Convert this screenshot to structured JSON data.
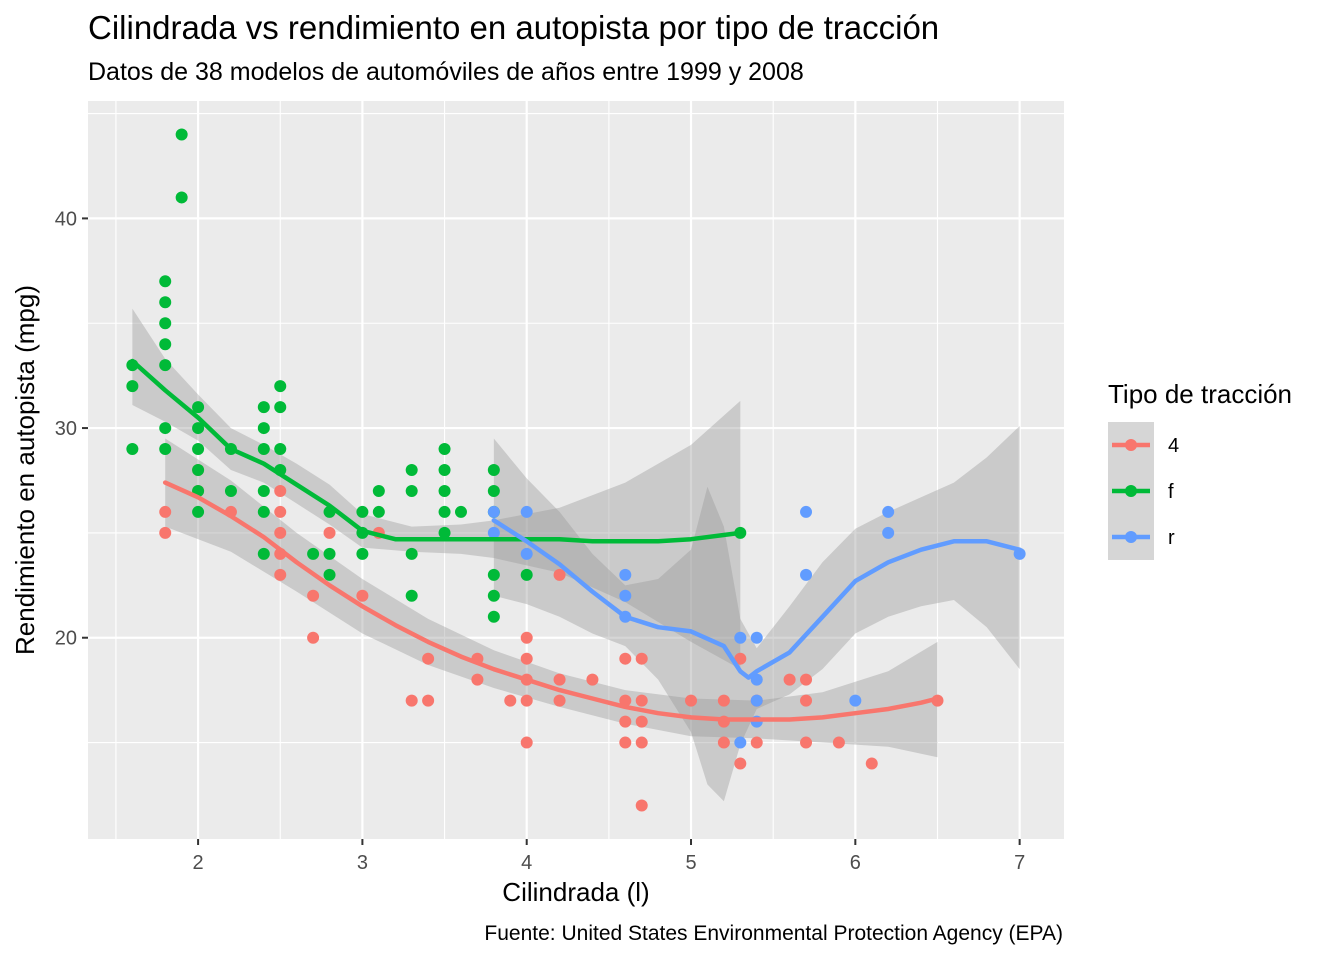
{
  "chart_data": {
    "type": "scatter",
    "title": "Cilindrada vs rendimiento en autopista por tipo de tracción",
    "subtitle": "Datos de 38 modelos de automóviles de años entre 1999 y 2008",
    "xlabel": "Cilindrada (l)",
    "ylabel": "Rendimiento en autopista (mpg)",
    "caption": "Fuente: United States Environmental Protection Agency (EPA)",
    "xlim": [
      1.33,
      7.27
    ],
    "ylim": [
      10.4,
      45.6
    ],
    "x_ticks": [
      2,
      3,
      4,
      5,
      6,
      7
    ],
    "x_tick_labels": [
      "2",
      "3",
      "4",
      "5",
      "6",
      "7"
    ],
    "y_ticks": [
      20,
      30,
      40
    ],
    "y_tick_labels": [
      "20",
      "30",
      "40"
    ],
    "grid": true,
    "legend": {
      "title": "Tipo de tracción",
      "placement": "right",
      "entries": [
        "4",
        "f",
        "r"
      ]
    },
    "series": [
      {
        "name": "4",
        "color": "#F8766D",
        "points": [
          [
            1.8,
            26
          ],
          [
            1.8,
            25
          ],
          [
            2.0,
            28
          ],
          [
            2.0,
            27
          ],
          [
            2.2,
            26
          ],
          [
            2.5,
            27
          ],
          [
            2.5,
            26
          ],
          [
            2.5,
            25
          ],
          [
            2.5,
            24
          ],
          [
            2.5,
            23
          ],
          [
            2.7,
            22
          ],
          [
            2.7,
            20
          ],
          [
            2.8,
            25
          ],
          [
            3.0,
            22
          ],
          [
            3.1,
            25
          ],
          [
            3.3,
            17
          ],
          [
            3.4,
            19
          ],
          [
            3.4,
            17
          ],
          [
            3.7,
            19
          ],
          [
            3.7,
            18
          ],
          [
            3.9,
            17
          ],
          [
            4.0,
            20
          ],
          [
            4.0,
            19
          ],
          [
            4.0,
            18
          ],
          [
            4.0,
            17
          ],
          [
            4.0,
            15
          ],
          [
            4.2,
            23
          ],
          [
            4.2,
            18
          ],
          [
            4.2,
            17
          ],
          [
            4.4,
            18
          ],
          [
            4.6,
            19
          ],
          [
            4.6,
            17
          ],
          [
            4.6,
            16
          ],
          [
            4.6,
            15
          ],
          [
            4.7,
            19
          ],
          [
            4.7,
            17
          ],
          [
            4.7,
            16
          ],
          [
            4.7,
            15
          ],
          [
            4.7,
            12
          ],
          [
            5.0,
            17
          ],
          [
            5.2,
            17
          ],
          [
            5.2,
            16
          ],
          [
            5.2,
            15
          ],
          [
            5.3,
            19
          ],
          [
            5.3,
            14
          ],
          [
            5.4,
            17
          ],
          [
            5.4,
            15
          ],
          [
            5.6,
            18
          ],
          [
            5.7,
            18
          ],
          [
            5.7,
            17
          ],
          [
            5.7,
            15
          ],
          [
            5.9,
            15
          ],
          [
            6.1,
            14
          ],
          [
            6.5,
            17
          ]
        ],
        "smooth": [
          [
            1.8,
            27.4
          ],
          [
            2.0,
            26.7
          ],
          [
            2.2,
            25.8
          ],
          [
            2.4,
            24.8
          ],
          [
            2.6,
            23.6
          ],
          [
            2.8,
            22.5
          ],
          [
            3.0,
            21.5
          ],
          [
            3.2,
            20.6
          ],
          [
            3.4,
            19.8
          ],
          [
            3.6,
            19.1
          ],
          [
            3.8,
            18.5
          ],
          [
            4.0,
            18.0
          ],
          [
            4.2,
            17.5
          ],
          [
            4.4,
            17.1
          ],
          [
            4.6,
            16.7
          ],
          [
            4.8,
            16.4
          ],
          [
            5.0,
            16.2
          ],
          [
            5.2,
            16.1
          ],
          [
            5.4,
            16.1
          ],
          [
            5.6,
            16.1
          ],
          [
            5.8,
            16.2
          ],
          [
            6.0,
            16.4
          ],
          [
            6.2,
            16.6
          ],
          [
            6.4,
            16.9
          ],
          [
            6.5,
            17.1
          ]
        ],
        "band": [
          [
            1.8,
            29.5,
            25.3
          ],
          [
            2.2,
            27.5,
            24.1
          ],
          [
            2.6,
            25.0,
            22.2
          ],
          [
            3.0,
            22.8,
            20.2
          ],
          [
            3.4,
            20.9,
            18.7
          ],
          [
            3.8,
            19.4,
            17.6
          ],
          [
            4.2,
            18.3,
            16.7
          ],
          [
            4.6,
            17.5,
            15.9
          ],
          [
            5.0,
            17.1,
            15.3
          ],
          [
            5.4,
            17.0,
            15.2
          ],
          [
            5.8,
            17.4,
            15.0
          ],
          [
            6.2,
            18.4,
            14.8
          ],
          [
            6.5,
            19.8,
            14.3
          ]
        ]
      },
      {
        "name": "f",
        "color": "#00BA38",
        "points": [
          [
            1.6,
            33
          ],
          [
            1.6,
            32
          ],
          [
            1.6,
            29
          ],
          [
            1.8,
            37
          ],
          [
            1.8,
            36
          ],
          [
            1.8,
            35
          ],
          [
            1.8,
            34
          ],
          [
            1.8,
            33
          ],
          [
            1.8,
            30
          ],
          [
            1.8,
            29
          ],
          [
            1.9,
            44
          ],
          [
            1.9,
            41
          ],
          [
            2.0,
            31
          ],
          [
            2.0,
            30
          ],
          [
            2.0,
            29
          ],
          [
            2.0,
            28
          ],
          [
            2.0,
            27
          ],
          [
            2.0,
            26
          ],
          [
            2.2,
            29
          ],
          [
            2.2,
            27
          ],
          [
            2.4,
            31
          ],
          [
            2.4,
            30
          ],
          [
            2.4,
            29
          ],
          [
            2.4,
            27
          ],
          [
            2.4,
            26
          ],
          [
            2.4,
            24
          ],
          [
            2.5,
            32
          ],
          [
            2.5,
            31
          ],
          [
            2.5,
            29
          ],
          [
            2.5,
            28
          ],
          [
            2.7,
            24
          ],
          [
            2.8,
            26
          ],
          [
            2.8,
            24
          ],
          [
            2.8,
            23
          ],
          [
            3.0,
            26
          ],
          [
            3.0,
            25
          ],
          [
            3.0,
            24
          ],
          [
            3.1,
            27
          ],
          [
            3.1,
            26
          ],
          [
            3.3,
            28
          ],
          [
            3.3,
            27
          ],
          [
            3.3,
            24
          ],
          [
            3.3,
            22
          ],
          [
            3.5,
            29
          ],
          [
            3.5,
            28
          ],
          [
            3.5,
            27
          ],
          [
            3.5,
            26
          ],
          [
            3.5,
            25
          ],
          [
            3.6,
            26
          ],
          [
            3.8,
            28
          ],
          [
            3.8,
            27
          ],
          [
            3.8,
            26
          ],
          [
            3.8,
            23
          ],
          [
            3.8,
            22
          ],
          [
            3.8,
            21
          ],
          [
            4.0,
            23
          ],
          [
            5.3,
            25
          ]
        ],
        "smooth": [
          [
            1.6,
            33.2
          ],
          [
            1.8,
            31.8
          ],
          [
            2.0,
            30.5
          ],
          [
            2.2,
            29.0
          ],
          [
            2.4,
            28.3
          ],
          [
            2.6,
            27.3
          ],
          [
            2.8,
            26.3
          ],
          [
            3.0,
            25.1
          ],
          [
            3.2,
            24.7
          ],
          [
            3.4,
            24.7
          ],
          [
            3.6,
            24.7
          ],
          [
            3.8,
            24.7
          ],
          [
            4.0,
            24.7
          ],
          [
            4.2,
            24.7
          ],
          [
            4.4,
            24.6
          ],
          [
            4.6,
            24.6
          ],
          [
            4.8,
            24.6
          ],
          [
            5.0,
            24.7
          ],
          [
            5.3,
            25.0
          ]
        ],
        "band": [
          [
            1.6,
            35.7,
            31.1
          ],
          [
            1.8,
            33.3,
            30.3
          ],
          [
            2.0,
            31.6,
            29.4
          ],
          [
            2.2,
            30.0,
            28.0
          ],
          [
            2.4,
            29.2,
            27.4
          ],
          [
            2.6,
            28.3,
            26.4
          ],
          [
            2.8,
            27.3,
            25.4
          ],
          [
            3.0,
            25.9,
            24.3
          ],
          [
            3.3,
            25.3,
            24.1
          ],
          [
            3.6,
            25.4,
            24.0
          ],
          [
            3.8,
            25.6,
            23.8
          ],
          [
            4.2,
            26.2,
            23.1
          ],
          [
            4.6,
            27.4,
            21.7
          ],
          [
            5.0,
            29.2,
            19.8
          ],
          [
            5.3,
            31.3,
            18.5
          ]
        ]
      },
      {
        "name": "r",
        "color": "#619CFF",
        "points": [
          [
            3.8,
            26
          ],
          [
            3.8,
            25
          ],
          [
            4.0,
            26
          ],
          [
            4.0,
            24
          ],
          [
            4.6,
            23
          ],
          [
            4.6,
            22
          ],
          [
            4.6,
            21
          ],
          [
            5.3,
            20
          ],
          [
            5.3,
            15
          ],
          [
            5.4,
            20
          ],
          [
            5.4,
            18
          ],
          [
            5.4,
            17
          ],
          [
            5.4,
            16
          ],
          [
            5.7,
            26
          ],
          [
            5.7,
            23
          ],
          [
            6.0,
            17
          ],
          [
            6.2,
            26
          ],
          [
            6.2,
            25
          ],
          [
            7.0,
            24
          ]
        ],
        "smooth": [
          [
            3.8,
            25.6
          ],
          [
            4.0,
            24.6
          ],
          [
            4.2,
            23.5
          ],
          [
            4.4,
            22.2
          ],
          [
            4.6,
            21.0
          ],
          [
            4.8,
            20.5
          ],
          [
            5.0,
            20.3
          ],
          [
            5.2,
            19.6
          ],
          [
            5.3,
            18.4
          ],
          [
            5.35,
            18.1
          ],
          [
            5.4,
            18.4
          ],
          [
            5.6,
            19.3
          ],
          [
            5.8,
            21.0
          ],
          [
            6.0,
            22.7
          ],
          [
            6.2,
            23.6
          ],
          [
            6.4,
            24.2
          ],
          [
            6.6,
            24.6
          ],
          [
            6.8,
            24.6
          ],
          [
            7.0,
            24.2
          ]
        ],
        "band": [
          [
            3.8,
            29.5,
            22.0
          ],
          [
            4.0,
            27.6,
            21.6
          ],
          [
            4.2,
            26.0,
            21.0
          ],
          [
            4.4,
            24.0,
            20.2
          ],
          [
            4.6,
            22.5,
            19.6
          ],
          [
            4.8,
            22.8,
            18.0
          ],
          [
            5.0,
            24.2,
            15.5
          ],
          [
            5.1,
            27.2,
            13.0
          ],
          [
            5.2,
            25.3,
            12.2
          ],
          [
            5.3,
            20.9,
            14.9
          ],
          [
            5.4,
            19.5,
            16.6
          ],
          [
            5.6,
            21.5,
            17.3
          ],
          [
            5.8,
            23.6,
            18.5
          ],
          [
            6.0,
            25.2,
            20.2
          ],
          [
            6.2,
            26.0,
            21.0
          ],
          [
            6.4,
            26.7,
            21.5
          ],
          [
            6.6,
            27.4,
            21.8
          ],
          [
            6.8,
            28.6,
            20.5
          ],
          [
            7.0,
            30.1,
            18.5
          ]
        ]
      }
    ]
  }
}
